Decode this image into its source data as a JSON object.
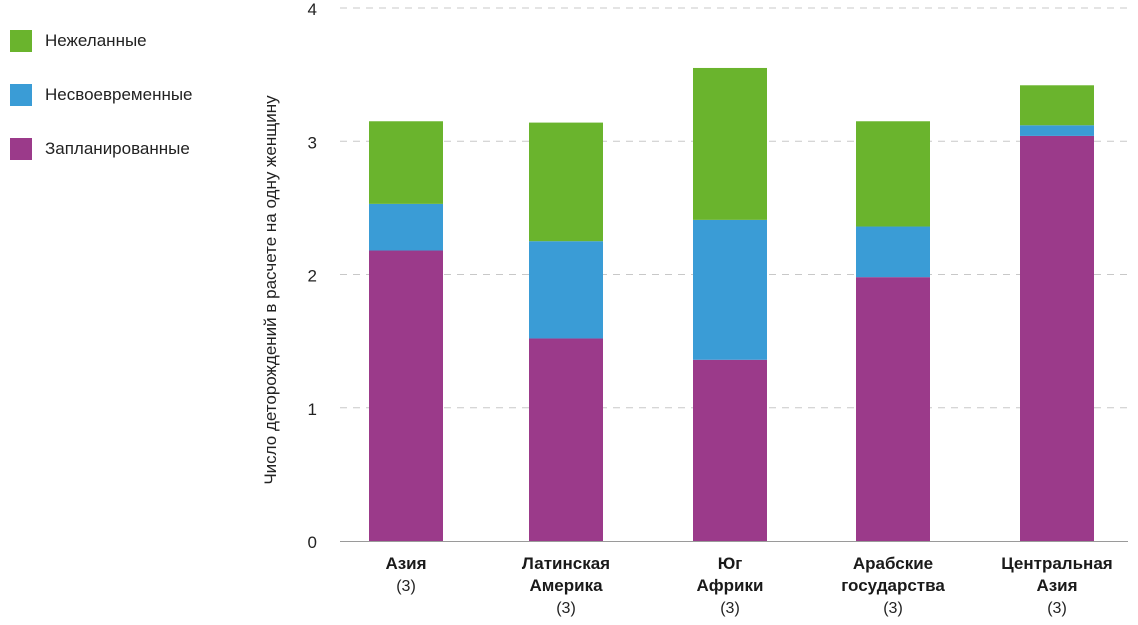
{
  "legend": {
    "items": [
      {
        "key": "unwanted",
        "label": "Нежеланные",
        "color": "#6ab42d"
      },
      {
        "key": "mistimed",
        "label": "Несвоевременные",
        "color": "#3a9cd6"
      },
      {
        "key": "planned",
        "label": "Запланированные",
        "color": "#9b3a8a"
      }
    ]
  },
  "chart_data": {
    "type": "bar",
    "stacked": true,
    "ylabel": "Число деторождений в расчете на одну женщину",
    "xlabel": "",
    "ylim": [
      0,
      4
    ],
    "yticks": [
      0,
      1,
      2,
      3,
      4
    ],
    "grid": "horizontal dashed",
    "legend_placement": "top-left",
    "categories": [
      {
        "lines": [
          "Азия"
        ],
        "note": "(3)"
      },
      {
        "lines": [
          "Латинская",
          "Америка"
        ],
        "note": "(3)"
      },
      {
        "lines": [
          "Юг",
          "Африки"
        ],
        "note": "(3)"
      },
      {
        "lines": [
          "Арабские",
          "государства"
        ],
        "note": "(3)"
      },
      {
        "lines": [
          "Центральная",
          "Азия"
        ],
        "note": "(3)"
      }
    ],
    "series": [
      {
        "name": "Запланированные",
        "color": "#9b3a8a",
        "values": [
          2.18,
          1.52,
          1.36,
          1.98,
          3.04
        ]
      },
      {
        "name": "Несвоевременные",
        "color": "#3a9cd6",
        "values": [
          0.35,
          0.73,
          1.05,
          0.38,
          0.08
        ]
      },
      {
        "name": "Нежеланные",
        "color": "#6ab42d",
        "values": [
          0.62,
          0.89,
          1.14,
          0.79,
          0.3
        ]
      }
    ]
  }
}
